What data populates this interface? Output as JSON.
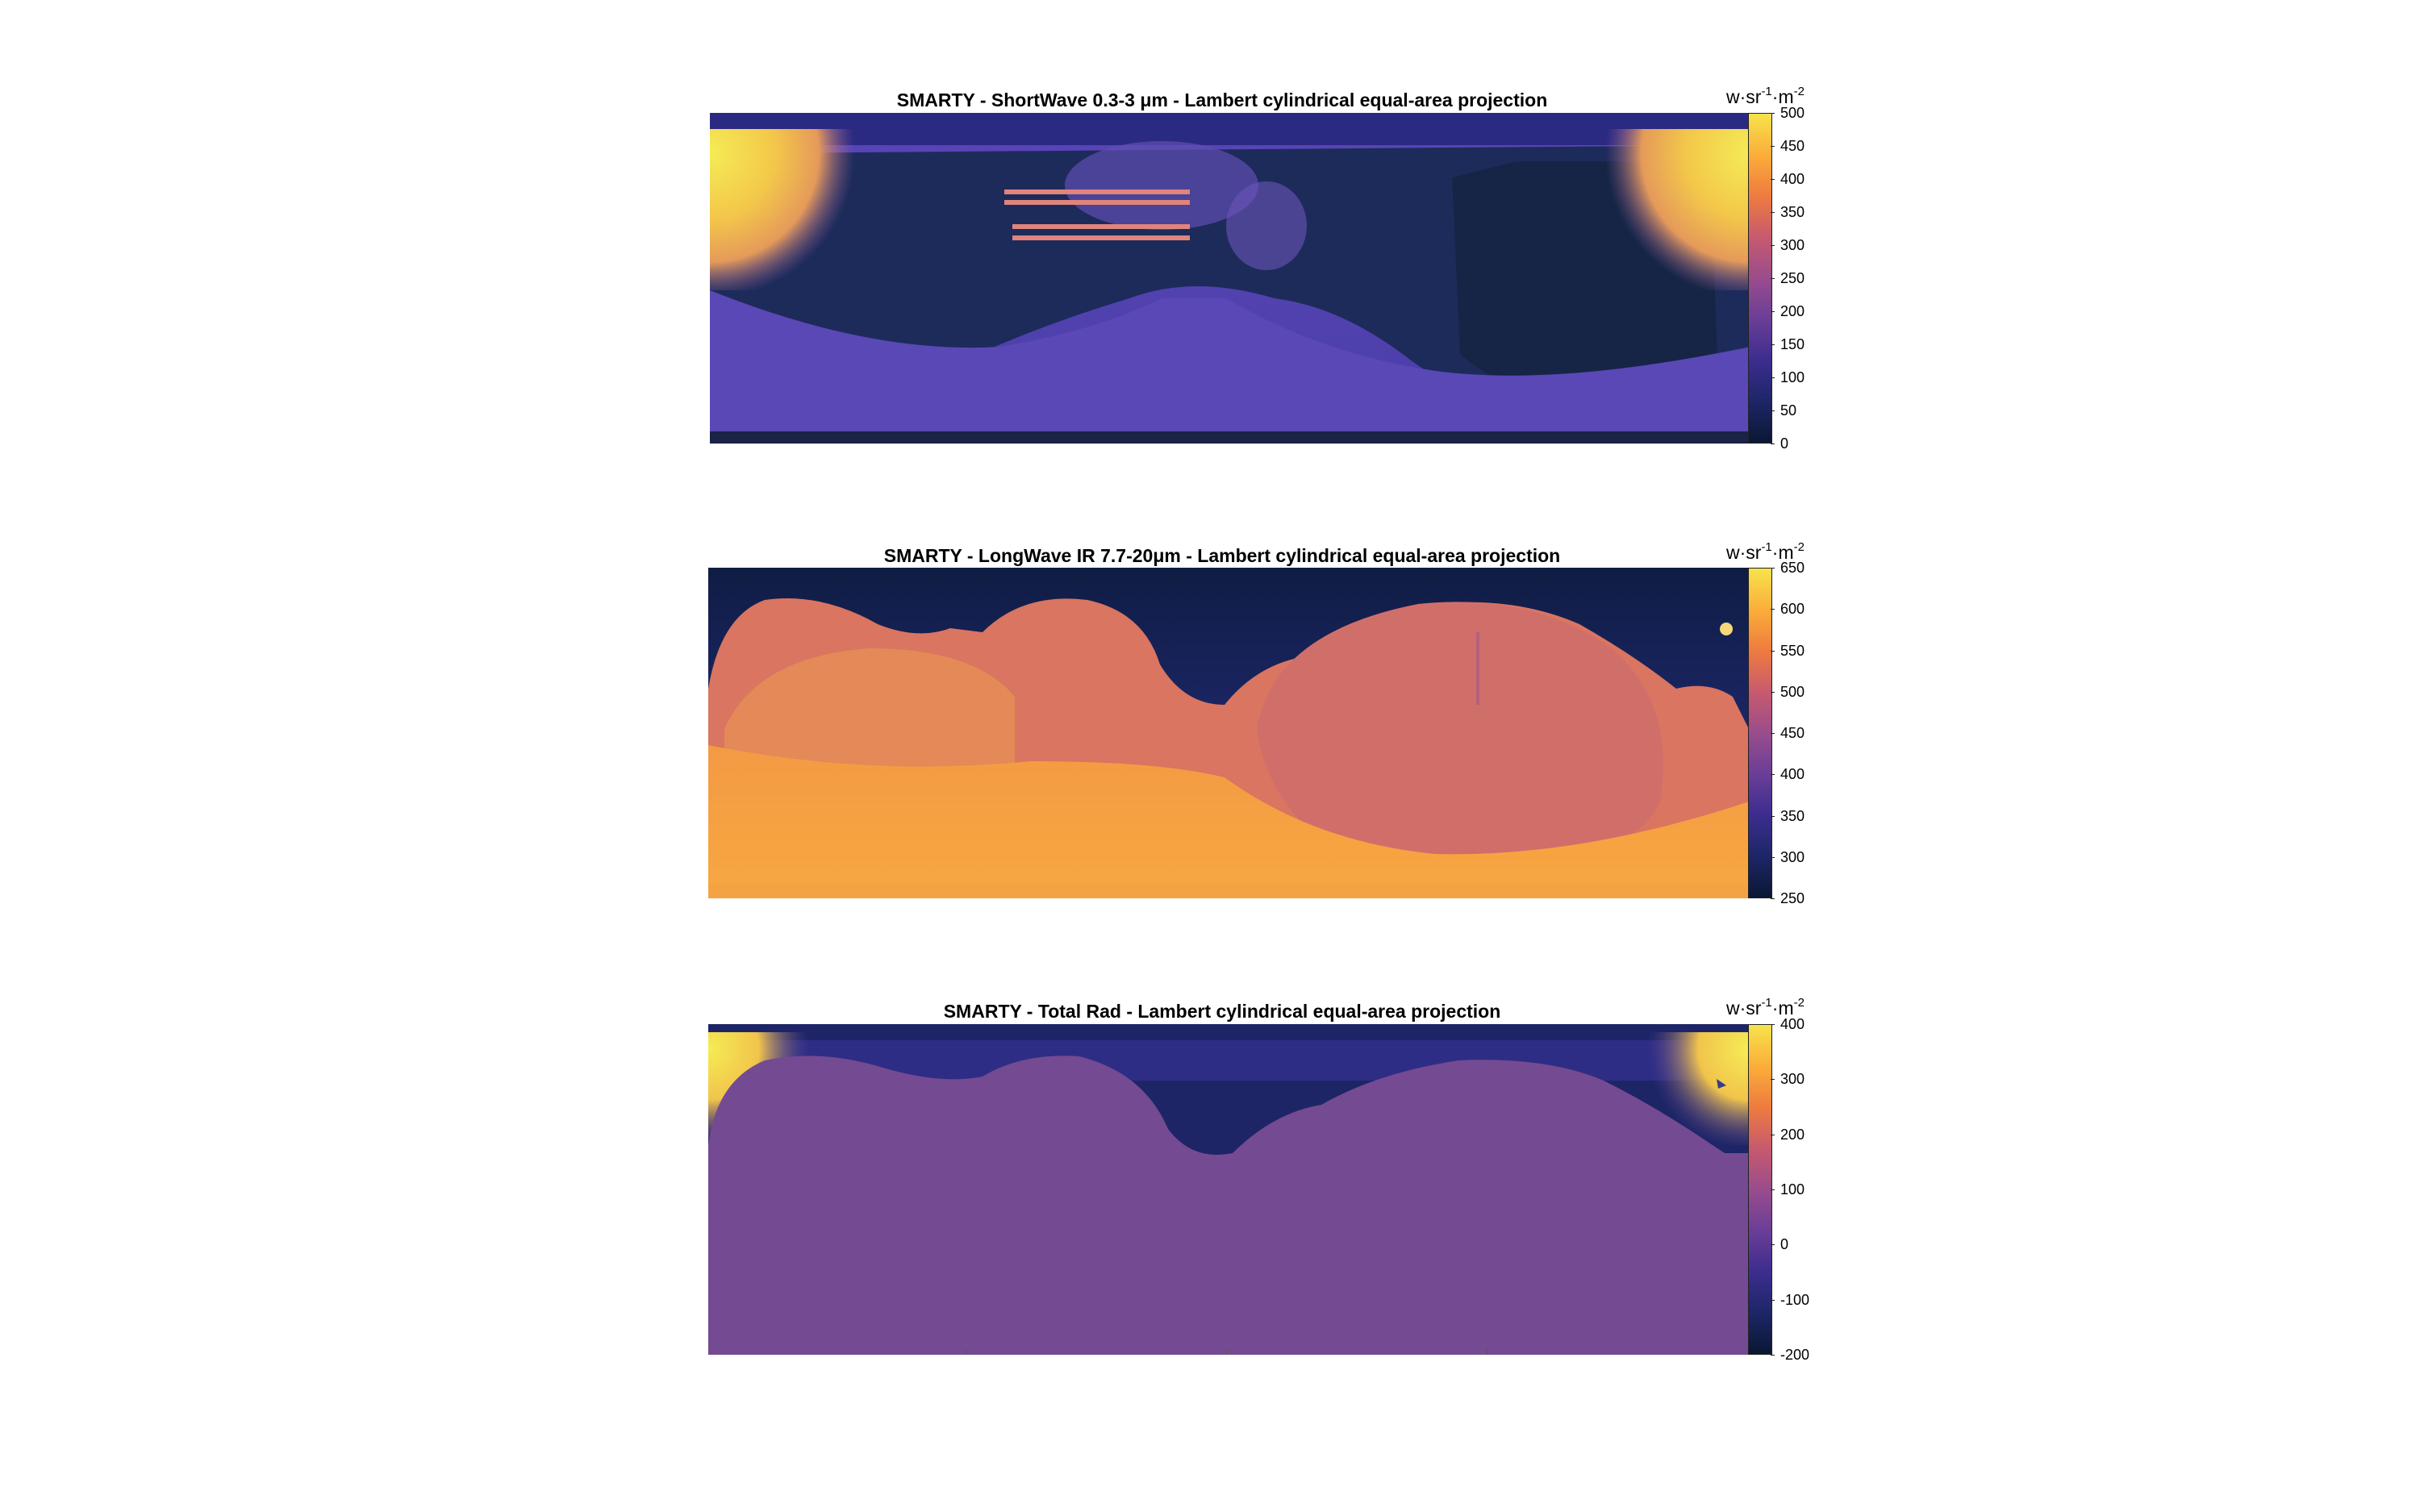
{
  "chart_data": [
    {
      "type": "heatmap",
      "title": "SMARTY - ShortWave 0.3-3 μm - Lambert cylindrical equal-area projection",
      "colorbar": {
        "units": "w·sr-1·m-2",
        "units_parts": [
          "w·sr",
          "-1",
          "·m",
          "-2"
        ],
        "range": [
          0,
          500
        ],
        "ticks": [
          "500",
          "450",
          "400",
          "350",
          "300",
          "250",
          "200",
          "150",
          "100",
          "50",
          "0"
        ]
      },
      "colormap": [
        "#0b1733",
        "#1d2667",
        "#3c2d8e",
        "#6a3e97",
        "#9a4c8c",
        "#c75a6e",
        "#ee7b3f",
        "#fbae3a",
        "#f7e34c"
      ],
      "grid": false,
      "projection": "Lambert cylindrical equal-area"
    },
    {
      "type": "heatmap",
      "title": "SMARTY - LongWave IR 7.7-20μm - Lambert cylindrical equal-area projection",
      "colorbar": {
        "units": "w·sr-1·m-2",
        "units_parts": [
          "w·sr",
          "-1",
          "·m",
          "-2"
        ],
        "range": [
          250,
          650
        ],
        "ticks": [
          "650",
          "600",
          "550",
          "500",
          "450",
          "400",
          "350",
          "300",
          "250"
        ]
      },
      "colormap": [
        "#0b1733",
        "#1d2667",
        "#3c2d8e",
        "#6a3e97",
        "#9a4c8c",
        "#c75a6e",
        "#ee7b3f",
        "#fbae3a",
        "#f7e34c"
      ],
      "grid": false,
      "projection": "Lambert cylindrical equal-area"
    },
    {
      "type": "heatmap",
      "title": "SMARTY - Total Rad - Lambert cylindrical equal-area projection",
      "colorbar": {
        "units": "w·sr-1·m-2",
        "units_parts": [
          "w·sr",
          "-1",
          "·m",
          "-2"
        ],
        "range": [
          -200,
          400
        ],
        "ticks": [
          "400",
          "300",
          "200",
          "100",
          "0",
          "-100",
          "-200"
        ]
      },
      "colormap": [
        "#0b1733",
        "#1d2667",
        "#3c2d8e",
        "#6a3e97",
        "#9a4c8c",
        "#c75a6e",
        "#ee7b3f",
        "#fbae3a",
        "#f7e34c"
      ],
      "grid": false,
      "projection": "Lambert cylindrical equal-area"
    }
  ]
}
